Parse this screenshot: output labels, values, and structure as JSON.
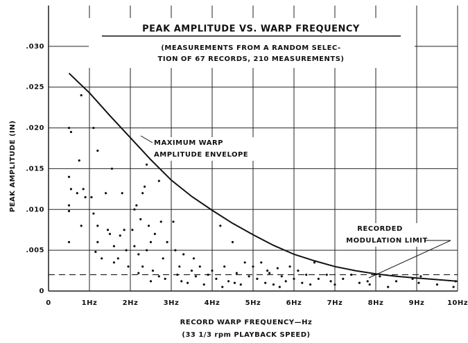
{
  "chart_data": {
    "type": "scatter",
    "title": "PEAK AMPLITUDE  VS.  WARP FREQUENCY",
    "subtitle": [
      "(MEASUREMENTS FROM A RANDOM SELEC-",
      "TION OF 67 RECORDS, 210 MEASUREMENTS)"
    ],
    "xlabel": [
      "RECORD WARP FREQUENCY—Hz",
      "(33 1/3 rpm  PLAYBACK SPEED)"
    ],
    "ylabel": "PEAK AMPLITUDE (IN)",
    "xlim": [
      0,
      10
    ],
    "ylim": [
      0,
      0.035
    ],
    "xticks": [
      0,
      {
        "value": 1,
        "label": "1Hz"
      },
      {
        "value": 2,
        "label": "2Hz"
      },
      {
        "value": 3,
        "label": "3Hz"
      },
      {
        "value": 4,
        "label": "4Hz"
      },
      {
        "value": 5,
        "label": "5Hz"
      },
      {
        "value": 6,
        "label": "6Hz"
      },
      {
        "value": 7,
        "label": "7Hz"
      },
      {
        "value": 8,
        "label": "8Hz"
      },
      {
        "value": 9,
        "label": "9Hz"
      },
      {
        "value": 10,
        "label": "10Hz"
      }
    ],
    "yticks": [
      0,
      {
        "value": 0.005,
        "label": ".005"
      },
      {
        "value": 0.01,
        "label": ".010"
      },
      {
        "value": 0.015,
        "label": ".015"
      },
      {
        "value": 0.02,
        "label": ".020"
      },
      {
        "value": 0.025,
        "label": ".025"
      },
      {
        "value": 0.03,
        "label": ".030"
      }
    ],
    "grid": true,
    "color": "#111111",
    "points": {
      "x": [
        0.5,
        0.55,
        0.5,
        0.55,
        0.5,
        0.5,
        0.5,
        0.75,
        0.8,
        0.85,
        0.8,
        0.9,
        0.7,
        1.05,
        1.1,
        1.2,
        1.2,
        1.2,
        1.15,
        1.3,
        1.1,
        1.4,
        1.45,
        1.5,
        1.55,
        1.6,
        1.7,
        1.8,
        1.75,
        1.85,
        1.9,
        1.95,
        1.6,
        2.05,
        2.1,
        2.15,
        2.1,
        2.2,
        2.25,
        2.3,
        2.35,
        2.4,
        2.3,
        2.4,
        2.45,
        2.5,
        2.55,
        2.6,
        2.7,
        2.75,
        2.8,
        2.9,
        2.85,
        2.7,
        2.5,
        2.2,
        3.05,
        3.1,
        3.15,
        3.2,
        3.3,
        3.4,
        3.5,
        3.6,
        3.7,
        3.8,
        3.9,
        3.25,
        3.55,
        4.0,
        4.1,
        4.2,
        4.3,
        4.4,
        4.5,
        4.6,
        4.7,
        4.8,
        4.9,
        4.25,
        4.55,
        5.0,
        5.1,
        5.2,
        5.3,
        5.4,
        5.5,
        5.6,
        5.7,
        5.8,
        5.9,
        5.65,
        5.35,
        6.0,
        6.1,
        6.2,
        6.3,
        6.4,
        6.5,
        6.6,
        6.8,
        6.9,
        7.0,
        7.2,
        7.4,
        7.6,
        7.8,
        7.85,
        8.1,
        8.3,
        8.5,
        8.9,
        9.05,
        9.1,
        9.5,
        9.9,
        9.95
      ],
      "y": [
        0.02,
        0.0195,
        0.014,
        0.0125,
        0.0105,
        0.0098,
        0.006,
        0.016,
        0.024,
        0.0125,
        0.008,
        0.0115,
        0.012,
        0.0115,
        0.02,
        0.0172,
        0.008,
        0.006,
        0.0048,
        0.004,
        0.0095,
        0.012,
        0.0075,
        0.007,
        0.015,
        0.0055,
        0.004,
        0.012,
        0.0068,
        0.0075,
        0.005,
        0.003,
        0.0035,
        0.0075,
        0.01,
        0.0105,
        0.0055,
        0.0045,
        0.0088,
        0.012,
        0.0128,
        0.0155,
        0.003,
        0.005,
        0.008,
        0.006,
        0.0025,
        0.007,
        0.0135,
        0.0085,
        0.004,
        0.006,
        0.0015,
        0.0018,
        0.0012,
        0.0022,
        0.0085,
        0.005,
        0.002,
        0.003,
        0.0045,
        0.001,
        0.0025,
        0.0018,
        0.003,
        0.0008,
        0.002,
        0.0012,
        0.004,
        0.0025,
        0.0015,
        0.008,
        0.003,
        0.0012,
        0.006,
        0.0022,
        0.0008,
        0.0035,
        0.0018,
        0.0005,
        0.001,
        0.003,
        0.0015,
        0.0035,
        0.001,
        0.0022,
        0.0008,
        0.0028,
        0.0018,
        0.0012,
        0.003,
        0.0005,
        0.0025,
        0.0015,
        0.0025,
        0.001,
        0.002,
        0.0008,
        0.0035,
        0.0015,
        0.002,
        0.0012,
        0.0008,
        0.0015,
        0.002,
        0.001,
        0.0012,
        0.0008,
        0.0018,
        0.0005,
        0.0012,
        0.0015,
        0.001,
        0.0018,
        0.0008,
        0.0005,
        0.0012
      ]
    },
    "envelope": {
      "label": [
        "MAXIMUM WARP",
        "AMPLITUDE ENVELOPE"
      ],
      "x": [
        0.5,
        1,
        1.5,
        2,
        2.5,
        3,
        3.5,
        4,
        4.5,
        5,
        5.5,
        6,
        6.5,
        7,
        7.5,
        8,
        8.5,
        9,
        9.5,
        10
      ],
      "y": [
        0.0267,
        0.0243,
        0.0215,
        0.0188,
        0.0161,
        0.0136,
        0.0116,
        0.0099,
        0.0083,
        0.0069,
        0.0056,
        0.0045,
        0.0037,
        0.003,
        0.0025,
        0.0021,
        0.0018,
        0.0016,
        0.0014,
        0.0012
      ]
    },
    "modulation_limit": {
      "label": [
        "RECORDED",
        "MODULATION LIMIT"
      ],
      "value": 0.002
    }
  }
}
